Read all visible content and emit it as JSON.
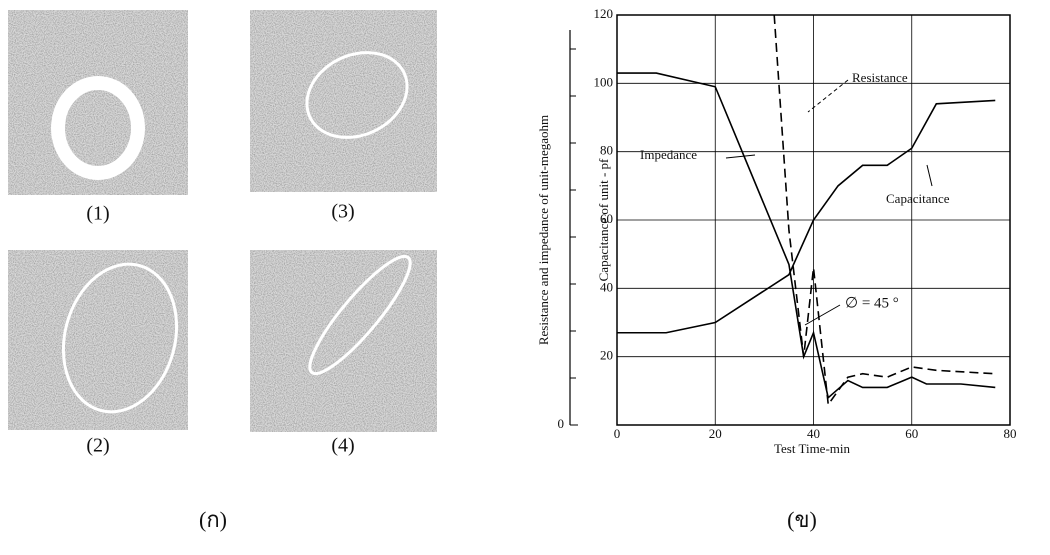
{
  "figure": {
    "image_labels": [
      "(1)",
      "(3)",
      "(2)",
      "(4)"
    ],
    "panel_labels": [
      "(ก)",
      "(ข)"
    ]
  },
  "chart_data": {
    "type": "line",
    "xlabel": "Test Time-min",
    "ylabel": "Capacitance of unit - pf",
    "y2label": "Resistance and impedance of unit-megaohm",
    "xlim": [
      0,
      80
    ],
    "xticks": [
      0,
      20,
      40,
      60,
      80
    ],
    "ylim": [
      0,
      120
    ],
    "yticks": [
      20,
      40,
      60,
      80,
      100,
      120
    ],
    "y2lim": [
      0,
      100
    ],
    "y2ticks": [
      0
    ],
    "grid": true,
    "series": [
      {
        "name": "Impedance",
        "color": "#000000",
        "dash": false,
        "x": [
          0,
          8,
          20,
          35,
          38,
          40,
          43,
          47,
          50,
          55,
          60,
          63,
          70,
          77
        ],
        "values": [
          103,
          103,
          99,
          47,
          20,
          27,
          8,
          13,
          11,
          11,
          14,
          12,
          12,
          11
        ]
      },
      {
        "name": "Capacitance",
        "color": "#000000",
        "dash": false,
        "x": [
          0,
          10,
          20,
          35,
          40,
          45,
          50,
          55,
          60,
          65,
          77
        ],
        "values": [
          27,
          27,
          30,
          44,
          60,
          70,
          76,
          76,
          81,
          94,
          95
        ]
      },
      {
        "name": "Resistance",
        "color": "#000000",
        "dash": true,
        "x": [
          32,
          35,
          38,
          40,
          43,
          47,
          50,
          55,
          60,
          65,
          77
        ],
        "values": [
          120,
          57,
          20,
          46,
          6,
          14,
          15,
          14,
          17,
          16,
          15
        ]
      }
    ],
    "annotations": [
      "∅ = 45 °"
    ]
  }
}
